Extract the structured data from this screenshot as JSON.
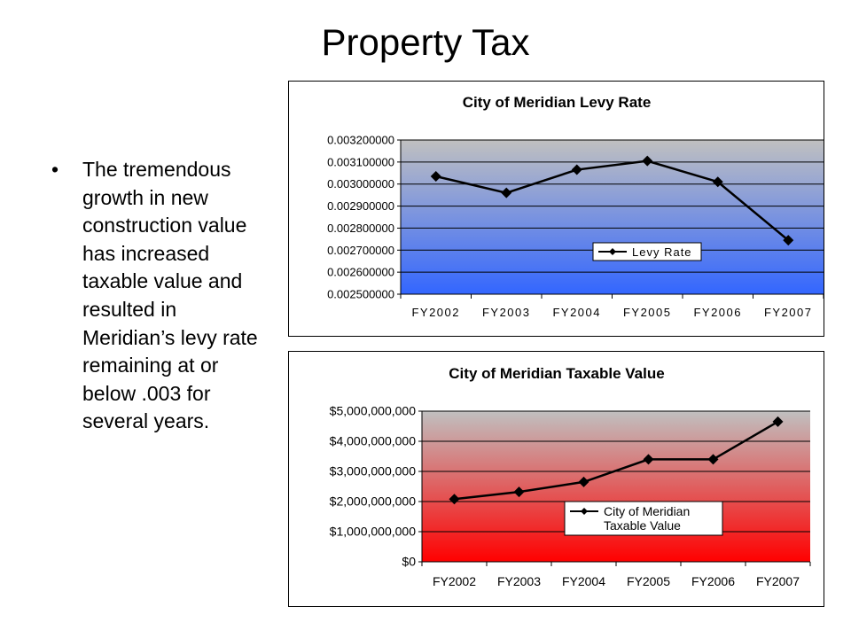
{
  "slide": {
    "title": "Property Tax",
    "bullet_symbol": "•",
    "bullet_text": "The tremendous growth in new construction value has increased taxable value and resulted in Meridian’s levy rate remaining at or below .003 for several years."
  },
  "chart_data": [
    {
      "type": "line",
      "title": "City of Meridian Levy Rate",
      "categories": [
        "FY2002",
        "FY2003",
        "FY2004",
        "FY2005",
        "FY2006",
        "FY2007"
      ],
      "series": [
        {
          "name": "Levy Rate",
          "values": [
            0.003035,
            0.00296,
            0.003065,
            0.003105,
            0.00301,
            0.002745
          ]
        }
      ],
      "ylim": [
        0.0025,
        0.0032
      ],
      "yticks": [
        0.0025,
        0.0026,
        0.0027,
        0.0028,
        0.0029,
        0.003,
        0.0031,
        0.0032
      ],
      "ytick_labels": [
        "0.002500000",
        "0.002600000",
        "0.002700000",
        "0.002800000",
        "0.002900000",
        "0.003000000",
        "0.003100000",
        "0.003200000"
      ],
      "grid": true,
      "legend": "right",
      "colors": {
        "plot_top": "#c0c0c0",
        "plot_bottom": "#3366ff",
        "line": "#000000"
      }
    },
    {
      "type": "line",
      "title": "City of Meridian Taxable Value",
      "categories": [
        "FY2002",
        "FY2003",
        "FY2004",
        "FY2005",
        "FY2006",
        "FY2007"
      ],
      "series": [
        {
          "name": "City of Meridian Taxable Value",
          "values": [
            2080000000,
            2320000000,
            2650000000,
            3400000000,
            3400000000,
            4650000000
          ]
        }
      ],
      "ylim": [
        0,
        5000000000
      ],
      "yticks": [
        0,
        1000000000,
        2000000000,
        3000000000,
        4000000000,
        5000000000
      ],
      "ytick_labels": [
        "$0",
        "$1,000,000,000",
        "$2,000,000,000",
        "$3,000,000,000",
        "$4,000,000,000",
        "$5,000,000,000"
      ],
      "grid": true,
      "legend": "right",
      "legend_lines": [
        "City of Meridian",
        "Taxable Value"
      ],
      "colors": {
        "plot_top": "#c0c0c0",
        "plot_bottom": "#ff0000",
        "line": "#000000"
      }
    }
  ]
}
